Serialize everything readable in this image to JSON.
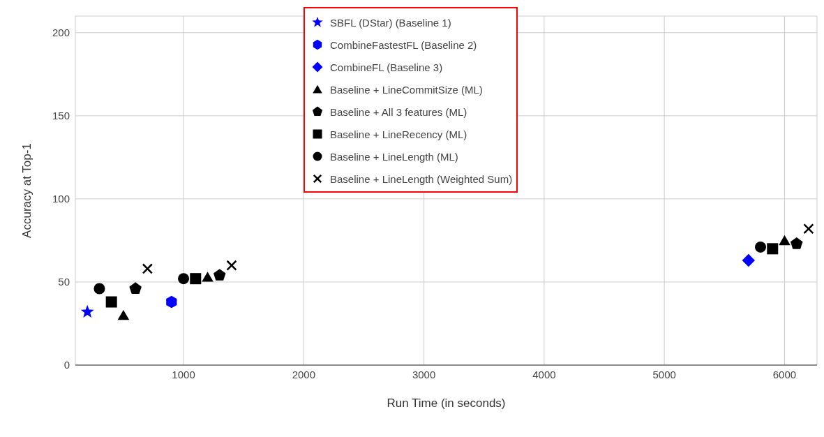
{
  "chart_data": {
    "type": "scatter",
    "xlabel": "Run Time (in seconds)",
    "ylabel": "Accuracy at Top-1",
    "xlim": [
      100,
      6270
    ],
    "xticks": [
      1000,
      2000,
      3000,
      4000,
      5000,
      6000
    ],
    "ylim": [
      0,
      210
    ],
    "yticks": [
      0,
      50,
      100,
      150,
      200
    ],
    "grid": true,
    "legend": "top",
    "series": [
      {
        "name": "SBFL (DStar) (Baseline 1)",
        "color": "#0000ff",
        "marker": "star",
        "x": [
          200
        ],
        "values": [
          32
        ]
      },
      {
        "name": "CombineFastestFL (Baseline 2)",
        "color": "#0000ff",
        "x": [
          900
        ],
        "values": [
          38
        ]
      },
      {
        "name": "CombineFL (Baseline 3)",
        "color": "#0000ff",
        "marker": "diamond",
        "x": [
          5700
        ],
        "values": [
          63
        ]
      },
      {
        "name": "Baseline + LineCommitSize (ML)",
        "color": "#000000",
        "marker": "triangle",
        "x": [
          500,
          1200,
          6000
        ],
        "values": [
          30,
          53,
          75
        ]
      },
      {
        "name": "Baseline + All 3 features (ML)",
        "color": "#000000",
        "x": [
          600,
          1300,
          6100
        ],
        "values": [
          46,
          54,
          73
        ]
      },
      {
        "name": "Baseline + LineRecency (ML)",
        "color": "#000000",
        "marker": "square",
        "x": [
          400,
          1100,
          5900
        ],
        "values": [
          38,
          52,
          70
        ]
      },
      {
        "name": "Baseline + LineLength (ML)",
        "color": "#000000",
        "marker": "circle",
        "x": [
          300,
          1000,
          5800
        ],
        "values": [
          46,
          52,
          71
        ]
      },
      {
        "name": "Baseline + LineLength (Weighted Sum)",
        "color": "#000000",
        "marker": "cross",
        "x": [
          700,
          1400,
          6200
        ],
        "values": [
          58,
          60,
          82
        ]
      }
    ]
  }
}
